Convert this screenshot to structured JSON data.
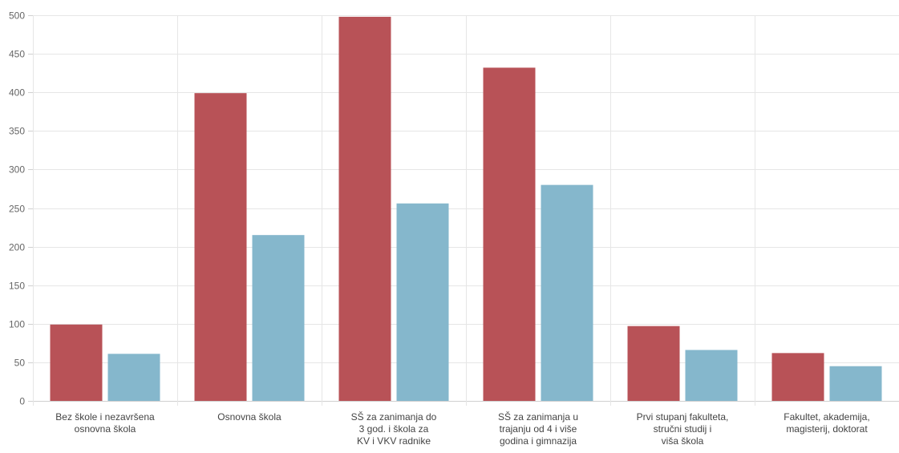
{
  "chart_data": {
    "type": "bar",
    "categories": [
      [
        "Bez škole i nezavršena",
        "osnovna škola"
      ],
      [
        "Osnovna škola"
      ],
      [
        "SŠ za zanimanja do",
        "3 god. i škola za",
        "KV i VKV radnike"
      ],
      [
        "SŠ za zanimanja u",
        "trajanju od 4 i više",
        "godina i gimnazija"
      ],
      [
        "Prvi stupanj fakulteta,",
        "stručni studij i",
        "viša škola"
      ],
      [
        "Fakultet, akademija,",
        "magisterij, doktorat"
      ]
    ],
    "series": [
      {
        "values": [
          99,
          399,
          498,
          432,
          97,
          62
        ],
        "color": "#b85257"
      },
      {
        "values": [
          61,
          215,
          256,
          280,
          66,
          45
        ],
        "color": "#85b7cc"
      }
    ],
    "ylim": [
      0,
      500
    ],
    "yticks": [
      "0",
      "50",
      "100",
      "150",
      "200",
      "250",
      "300",
      "350",
      "400",
      "450",
      "500"
    ],
    "grid": true,
    "legend": "none"
  }
}
